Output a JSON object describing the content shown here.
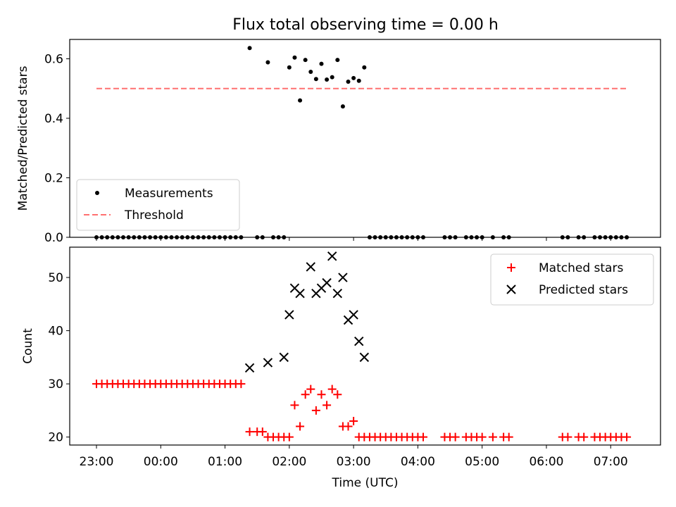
{
  "title": "Flux total observing time = 0.00 h",
  "chart_data": [
    {
      "type": "scatter",
      "ylabel": "Matched/Predicted stars",
      "ylim": [
        0,
        0.665
      ],
      "yticks": [
        0.0,
        0.2,
        0.4,
        0.6
      ],
      "ytick_labels": [
        "0.0",
        "0.2",
        "0.4",
        "0.6"
      ],
      "legend_position": "lower-left",
      "series": [
        {
          "name": "Measurements",
          "kind": "points",
          "color": "#000000",
          "x": [
            "23:00",
            "23:05",
            "23:10",
            "23:15",
            "23:20",
            "23:25",
            "23:30",
            "23:35",
            "23:40",
            "23:45",
            "23:50",
            "23:55",
            "00:00",
            "00:05",
            "00:10",
            "00:15",
            "00:20",
            "00:25",
            "00:30",
            "00:35",
            "00:40",
            "00:45",
            "00:50",
            "00:55",
            "01:00",
            "01:05",
            "01:10",
            "01:15",
            "01:23",
            "01:30",
            "01:35",
            "01:40",
            "01:45",
            "01:50",
            "01:55",
            "02:00",
            "02:05",
            "02:10",
            "02:15",
            "02:20",
            "02:25",
            "02:30",
            "02:35",
            "02:40",
            "02:45",
            "02:50",
            "02:55",
            "03:00",
            "03:05",
            "03:10",
            "03:15",
            "03:20",
            "03:25",
            "03:30",
            "03:35",
            "03:40",
            "03:45",
            "03:50",
            "03:55",
            "04:00",
            "04:05",
            "04:25",
            "04:30",
            "04:35",
            "04:45",
            "04:50",
            "04:55",
            "05:00",
            "05:10",
            "05:20",
            "05:25",
            "06:15",
            "06:20",
            "06:30",
            "06:35",
            "06:45",
            "06:50",
            "06:55",
            "07:00",
            "07:05",
            "07:10",
            "07:15"
          ],
          "y": [
            0,
            0,
            0,
            0,
            0,
            0,
            0,
            0,
            0,
            0,
            0,
            0,
            0,
            0,
            0,
            0,
            0,
            0,
            0,
            0,
            0,
            0,
            0,
            0,
            0,
            0,
            0,
            0,
            0.636,
            0,
            0,
            0.588,
            0,
            0,
            0,
            0.571,
            0.604,
            0.46,
            0.596,
            0.556,
            0.532,
            0.583,
            0.53,
            0.538,
            0.596,
            0.44,
            0.523,
            0.535,
            0.526,
            0.571,
            0,
            0,
            0,
            0,
            0,
            0,
            0,
            0,
            0,
            0,
            0,
            0,
            0,
            0,
            0,
            0,
            0,
            0,
            0,
            0,
            0,
            0,
            0,
            0,
            0,
            0,
            0,
            0,
            0,
            0,
            0,
            0
          ]
        },
        {
          "name": "Threshold",
          "kind": "dashed-line",
          "color": "#ff7070",
          "x": [
            "23:00",
            "07:15"
          ],
          "y": [
            0.5,
            0.5
          ]
        }
      ]
    },
    {
      "type": "scatter",
      "xlabel": "Time (UTC)",
      "ylabel": "Count",
      "ylim": [
        18.5,
        55.7
      ],
      "yticks": [
        20,
        30,
        40,
        50
      ],
      "ytick_labels": [
        "20",
        "30",
        "40",
        "50"
      ],
      "xticks": [
        "23:00",
        "00:00",
        "01:00",
        "02:00",
        "03:00",
        "04:00",
        "05:00",
        "06:00",
        "07:00"
      ],
      "legend_position": "upper-right",
      "series": [
        {
          "name": "Matched stars",
          "marker": "plus",
          "color": "#ff0000",
          "x": [
            "23:00",
            "23:05",
            "23:10",
            "23:15",
            "23:20",
            "23:25",
            "23:30",
            "23:35",
            "23:40",
            "23:45",
            "23:50",
            "23:55",
            "00:00",
            "00:05",
            "00:10",
            "00:15",
            "00:20",
            "00:25",
            "00:30",
            "00:35",
            "00:40",
            "00:45",
            "00:50",
            "00:55",
            "01:00",
            "01:05",
            "01:10",
            "01:15",
            "01:23",
            "01:30",
            "01:35",
            "01:40",
            "01:45",
            "01:50",
            "01:55",
            "02:00",
            "02:05",
            "02:10",
            "02:15",
            "02:20",
            "02:25",
            "02:30",
            "02:35",
            "02:40",
            "02:45",
            "02:50",
            "02:55",
            "03:00",
            "03:05",
            "03:10",
            "03:15",
            "03:20",
            "03:25",
            "03:30",
            "03:35",
            "03:40",
            "03:45",
            "03:50",
            "03:55",
            "04:00",
            "04:05",
            "04:25",
            "04:30",
            "04:35",
            "04:45",
            "04:50",
            "04:55",
            "05:00",
            "05:10",
            "05:20",
            "05:25",
            "06:15",
            "06:20",
            "06:30",
            "06:35",
            "06:45",
            "06:50",
            "06:55",
            "07:00",
            "07:05",
            "07:10",
            "07:15"
          ],
          "y": [
            30,
            30,
            30,
            30,
            30,
            30,
            30,
            30,
            30,
            30,
            30,
            30,
            30,
            30,
            30,
            30,
            30,
            30,
            30,
            30,
            30,
            30,
            30,
            30,
            30,
            30,
            30,
            30,
            21,
            21,
            21,
            20,
            20,
            20,
            20,
            20,
            26,
            22,
            28,
            29,
            25,
            28,
            26,
            29,
            28,
            22,
            22,
            23,
            20,
            20,
            20,
            20,
            20,
            20,
            20,
            20,
            20,
            20,
            20,
            20,
            20,
            20,
            20,
            20,
            20,
            20,
            20,
            20,
            20,
            20,
            20,
            20,
            20,
            20,
            20,
            20,
            20,
            20,
            20,
            20,
            20,
            20
          ]
        },
        {
          "name": "Predicted stars",
          "marker": "x",
          "color": "#000000",
          "x": [
            "01:23",
            "01:40",
            "01:55",
            "02:00",
            "02:05",
            "02:10",
            "02:20",
            "02:25",
            "02:30",
            "02:35",
            "02:40",
            "02:45",
            "02:50",
            "02:55",
            "03:00",
            "03:05",
            "03:10"
          ],
          "y": [
            33,
            34,
            35,
            43,
            48,
            47,
            52,
            47,
            48,
            49,
            54,
            47,
            50,
            42,
            43,
            38,
            35
          ]
        }
      ]
    }
  ]
}
